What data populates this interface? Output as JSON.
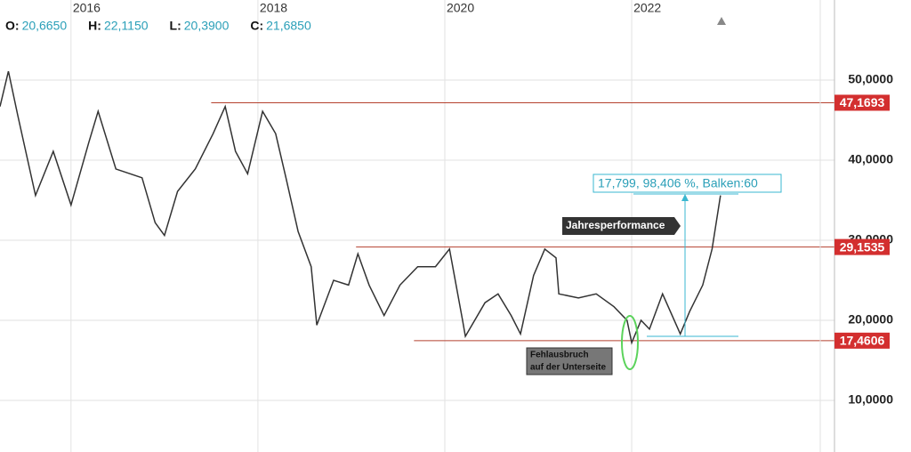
{
  "chart_data": {
    "type": "line",
    "header": [
      {
        "key": "O:",
        "value": "20,6650"
      },
      {
        "key": "H:",
        "value": "22,1150"
      },
      {
        "key": "L:",
        "value": "20,3900"
      },
      {
        "key": "C:",
        "value": "21,6850"
      }
    ],
    "x": [
      2015.24,
      2015.33,
      2015.43,
      2015.62,
      2015.81,
      2016.0,
      2016.19,
      2016.29,
      2016.48,
      2016.76,
      2016.9,
      2017.0,
      2017.14,
      2017.33,
      2017.52,
      2017.65,
      2017.76,
      2017.89,
      2018.05,
      2018.19,
      2018.3,
      2018.43,
      2018.57,
      2018.63,
      2018.81,
      2018.97,
      2019.07,
      2019.19,
      2019.35,
      2019.52,
      2019.71,
      2019.9,
      2020.05,
      2020.19,
      2020.22,
      2020.43,
      2020.57,
      2020.71,
      2020.81,
      2020.95,
      2021.07,
      2021.19,
      2021.22,
      2021.43,
      2021.62,
      2021.81,
      2021.95,
      2022.0,
      2022.1,
      2022.19,
      2022.33,
      2022.52,
      2022.62,
      2022.76,
      2022.86,
      2022.95
    ],
    "series": [
      {
        "color": "#333333",
        "values": [
          46.7,
          51.1,
          45.6,
          35.6,
          41.1,
          34.4,
          42.2,
          46.1,
          38.9,
          37.8,
          32.2,
          30.6,
          36.1,
          38.9,
          43.3,
          46.7,
          41.1,
          38.3,
          46.1,
          43.3,
          37.8,
          31.1,
          26.7,
          19.4,
          25.0,
          24.4,
          28.3,
          24.4,
          20.6,
          24.4,
          26.7,
          26.7,
          28.9,
          20.0,
          18.0,
          22.2,
          23.3,
          20.6,
          18.3,
          25.6,
          28.9,
          27.8,
          23.3,
          22.8,
          23.3,
          21.7,
          20.0,
          17.2,
          20.0,
          18.9,
          23.3,
          18.3,
          21.1,
          24.4,
          28.9,
          35.6
        ]
      }
    ],
    "xlim": [
      2015.24,
      2024.17
    ],
    "xticks": [
      2016,
      2018,
      2020,
      2022
    ],
    "ylim": [
      4,
      60
    ],
    "yticks": [
      {
        "value": 10,
        "label": "10,0000"
      },
      {
        "value": 20,
        "label": "20,0000"
      },
      {
        "value": 30,
        "label": "30,0000"
      },
      {
        "value": 40,
        "label": "40,0000"
      },
      {
        "value": 50,
        "label": "50,0000"
      }
    ],
    "grid": true,
    "levels": [
      {
        "value": 47.1693,
        "label": "47,1693",
        "from": 2017.5
      },
      {
        "value": 29.1535,
        "label": "29,1535",
        "from": 2019.05
      },
      {
        "value": 17.4606,
        "label": "17,4606",
        "from": 2019.67
      }
    ],
    "annotations": {
      "measure": "17,799, 98,406 %, Balken:60",
      "performance": "Jahresperformance",
      "breakout": [
        "Fehlausbruch",
        "auf der Unterseite"
      ]
    }
  }
}
